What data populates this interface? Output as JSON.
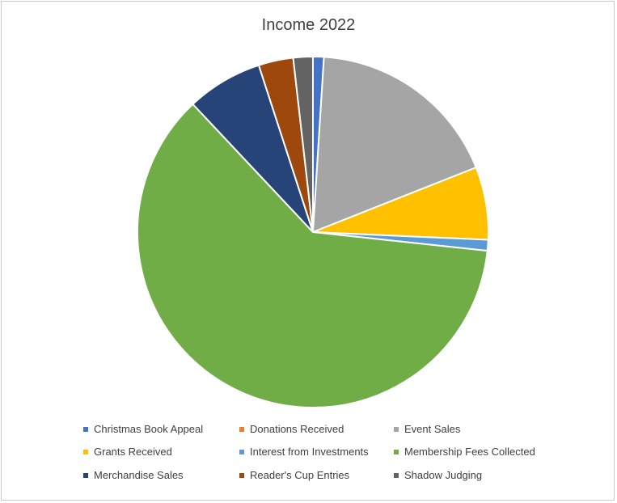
{
  "chart_data": {
    "type": "pie",
    "title": "Income 2022",
    "legend_position": "bottom",
    "start_angle_deg": 0,
    "direction": "clockwise",
    "slices": [
      {
        "label": "Christmas Book Appeal",
        "value": 1.0,
        "color": "#4472C4"
      },
      {
        "label": "Donations Received",
        "value": 0.0,
        "color": "#ED7D31"
      },
      {
        "label": "Event Sales",
        "value": 18.0,
        "color": "#A5A5A5"
      },
      {
        "label": "Grants Received",
        "value": 6.7,
        "color": "#FFC000"
      },
      {
        "label": "Interest from Investments",
        "value": 1.0,
        "color": "#5B9BD5"
      },
      {
        "label": "Membership Fees Collected",
        "value": 61.3,
        "color": "#70AD47"
      },
      {
        "label": "Merchandise Sales",
        "value": 7.0,
        "color": "#264478"
      },
      {
        "label": "Reader's Cup Entries",
        "value": 3.2,
        "color": "#9E480E"
      },
      {
        "label": "Shadow Judging",
        "value": 1.8,
        "color": "#636363"
      }
    ]
  }
}
